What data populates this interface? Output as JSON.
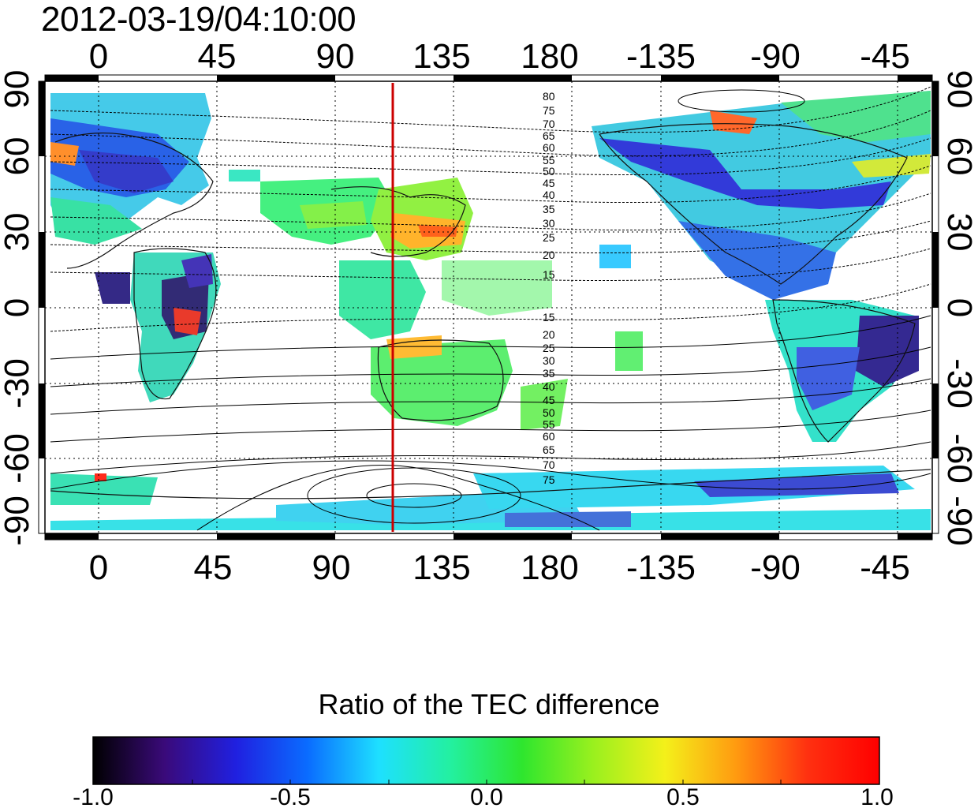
{
  "timestamp": "2012-03-19/04:10:00",
  "map": {
    "top_lon_ticks": [
      "0",
      "45",
      "90",
      "135",
      "180",
      "-135",
      "-90",
      "-45"
    ],
    "bottom_lon_ticks": [
      "0",
      "45",
      "90",
      "135",
      "180",
      "-135",
      "-90",
      "-45"
    ],
    "left_lat_ticks": [
      "90",
      "60",
      "30",
      "0",
      "-30",
      "-60",
      "-90"
    ],
    "right_lat_ticks": [
      "90",
      "60",
      "30",
      "0",
      "-30",
      "-60",
      "-90"
    ],
    "contour_labels_north": [
      "80",
      "75",
      "70",
      "65",
      "60",
      "55",
      "50",
      "45",
      "40",
      "35",
      "30",
      "25",
      "20",
      "15"
    ],
    "contour_labels_south": [
      "15",
      "20",
      "25",
      "30",
      "35",
      "40",
      "45",
      "50",
      "55",
      "60",
      "65",
      "70",
      "75"
    ],
    "marker_line_longitude": 112,
    "marker_color": "#cc0000"
  },
  "colorbar": {
    "title": "Ratio of the TEC difference",
    "tick_labels": [
      "-1.0",
      "-0.5",
      "0.0",
      "0.5",
      "1.0"
    ],
    "range": [
      -1.0,
      1.0
    ],
    "colors": [
      "#000000",
      "#3a0a7a",
      "#2020e0",
      "#0a6cff",
      "#1ee0ff",
      "#23f0a0",
      "#2ee62e",
      "#9af01e",
      "#f4f01a",
      "#ff9a10",
      "#ff3010",
      "#ff0000"
    ]
  }
}
